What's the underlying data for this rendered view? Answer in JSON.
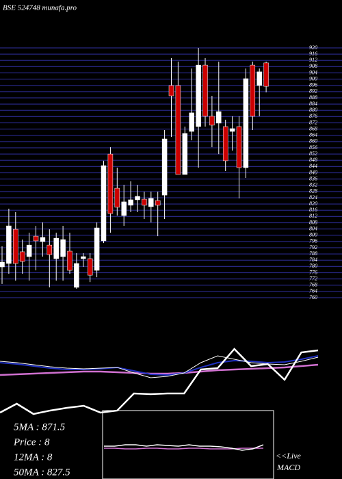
{
  "title": "BSE 524748 munafa.pro",
  "stats": [
    "5MA : 871.5",
    "Price : 8",
    "12MA : 8",
    "50MA : 827.5"
  ],
  "chart_data": [
    {
      "type": "candlestick",
      "up_color": "#ffffff",
      "down_color": "#cc0000",
      "grid": true,
      "grid_color": "#262680",
      "ylim": [
        760,
        920
      ],
      "yticks": [
        760,
        764,
        768,
        772,
        776,
        780,
        784,
        788,
        792,
        796,
        800,
        804,
        808,
        812,
        816,
        820,
        824,
        828,
        832,
        836,
        840,
        844,
        848,
        852,
        856,
        860,
        864,
        868,
        872,
        876,
        880,
        884,
        888,
        892,
        896,
        900,
        904,
        908,
        912,
        916,
        920
      ],
      "open": [
        779.7,
        781.9,
        803.8,
        789.4,
        786.3,
        799.4,
        795.9,
        793.7,
        785,
        786.3,
        789.8,
        766.6,
        785,
        785,
        777.5,
        796.4,
        852,
        830.1,
        812.6,
        819.2,
        822.7,
        823.1,
        818.3,
        822.2,
        825.7,
        895.9,
        895.9,
        838.9,
        866.5,
        869.6,
        909,
        876.2,
        871.8,
        869.6,
        866.5,
        869.6,
        843.3,
        909,
        895.9,
        910.4
      ],
      "high": [
        792.9,
        817,
        814.8,
        797.2,
        801.6,
        806,
        808.2,
        803.8,
        801.6,
        806,
        801.6,
        788.5,
        788.5,
        788.5,
        808.2,
        847.7,
        856.4,
        843.3,
        832.3,
        834.5,
        832.3,
        827.9,
        827.9,
        827.9,
        867.4,
        913.4,
        911.2,
        869.6,
        906.8,
        920,
        913.4,
        889.3,
        911.2,
        874,
        876.2,
        876.2,
        906.8,
        911.2,
        906.8,
        911.2
      ],
      "low": [
        768.8,
        775.3,
        770.9,
        775.3,
        770.9,
        777.5,
        786.3,
        766.6,
        770.9,
        770.9,
        775.3,
        765.7,
        779.7,
        770,
        773.1,
        795,
        801.6,
        812.6,
        806,
        814.8,
        814.8,
        810.4,
        808.2,
        799.4,
        810.4,
        863,
        838.9,
        838.9,
        860.8,
        843.3,
        869.6,
        856.4,
        852,
        841.1,
        854.2,
        823.6,
        836.7,
        867.4,
        876.2,
        891.5
      ],
      "close": [
        782.8,
        806,
        781.9,
        783.2,
        793.7,
        796.4,
        798.6,
        787.6,
        798.1,
        797.2,
        777.5,
        781.9,
        786.3,
        774.4,
        804.7,
        844.6,
        813.9,
        817.9,
        821.4,
        822.7,
        824.9,
        819.2,
        823.6,
        819.2,
        861.7,
        889.3,
        838.9,
        865.2,
        878.4,
        909,
        876.2,
        870.5,
        879.2,
        847.7,
        868.3,
        843.3,
        900.3,
        876.2,
        904.7,
        895.4
      ]
    },
    {
      "type": "line",
      "xlim": [
        0,
        19
      ],
      "ylim": [
        0,
        100
      ],
      "x": [
        0,
        1,
        2,
        3,
        4,
        5,
        6,
        7,
        8,
        9,
        10,
        11,
        12,
        13,
        14,
        15,
        16,
        17,
        18,
        19
      ],
      "series": [
        {
          "color": "#d070d0",
          "width": 2.5,
          "values": [
            60,
            60.8,
            61.7,
            62.5,
            63.3,
            64.2,
            64.2,
            63.3,
            62.5,
            61.7,
            61.7,
            62.5,
            64.2,
            65.8,
            66.7,
            67.5,
            68.3,
            69.2,
            70.8,
            72.5
          ]
        },
        {
          "color": "#2030c0",
          "width": 2,
          "values": [
            75,
            73.3,
            70.8,
            68.3,
            66.7,
            66.7,
            67.5,
            69.2,
            65,
            60.8,
            60,
            62.5,
            69.2,
            75,
            77.5,
            76.7,
            75,
            75.8,
            79.2,
            83.3
          ]
        },
        {
          "color": "#ffffff",
          "width": 1,
          "values": [
            76.7,
            75,
            72.5,
            70,
            68.3,
            67.5,
            68.3,
            69.2,
            62.5,
            56.7,
            58.3,
            62.5,
            75,
            83.3,
            79.2,
            75,
            73.3,
            72.5,
            76.7,
            81.7
          ]
        },
        {
          "color": "#ffffff",
          "width": 2.5,
          "values": [
            14.2,
            25,
            12.5,
            16.7,
            20,
            22.5,
            14.2,
            16.7,
            37.5,
            36.7,
            37.5,
            37.5,
            66.7,
            68.3,
            91.7,
            70.8,
            73.3,
            54.2,
            87.5,
            90
          ]
        }
      ]
    },
    {
      "type": "line",
      "xlim": [
        0,
        15
      ],
      "ylim": [
        0,
        100
      ],
      "annotations": [
        "<<Live",
        "MACD"
      ],
      "x": [
        0,
        1,
        2,
        3,
        4,
        5,
        6,
        7,
        8,
        9,
        10,
        11,
        12,
        13,
        14,
        15
      ],
      "series": [
        {
          "color": "#d070d0",
          "width": 1.5,
          "values": [
            45,
            45,
            44,
            44,
            45,
            45,
            44,
            44,
            45,
            45,
            44,
            44,
            44,
            45,
            45,
            45
          ]
        },
        {
          "color": "#ffffff",
          "width": 1.5,
          "values": [
            48,
            48,
            50,
            50,
            48,
            50,
            49,
            48,
            50,
            48,
            48,
            47,
            45,
            42,
            44,
            50
          ]
        }
      ]
    }
  ]
}
